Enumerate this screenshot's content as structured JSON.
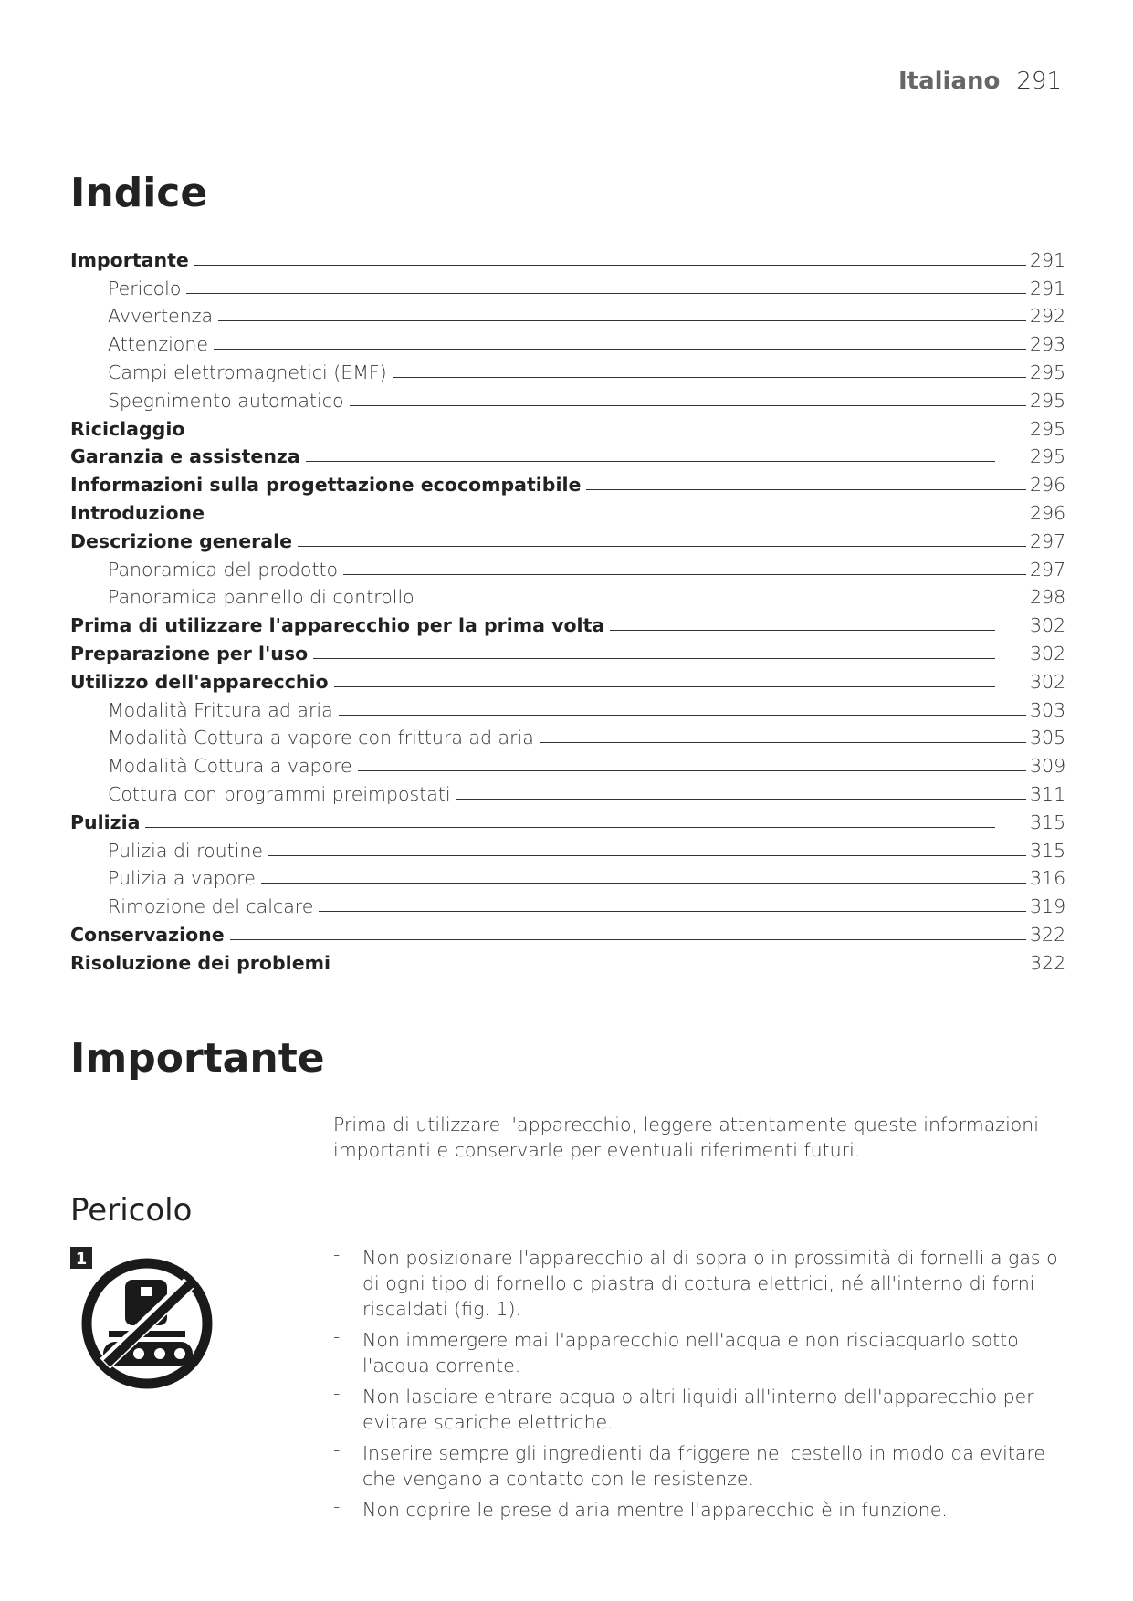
{
  "header": {
    "language": "Italiano",
    "page": "291"
  },
  "toc": {
    "title": "Indice",
    "entries": [
      {
        "label": "Importante",
        "page": "291",
        "level": 1,
        "far": false
      },
      {
        "label": "Pericolo",
        "page": "291",
        "level": 2,
        "far": false
      },
      {
        "label": "Avvertenza",
        "page": "292",
        "level": 2,
        "far": false
      },
      {
        "label": "Attenzione",
        "page": "293",
        "level": 2,
        "far": false
      },
      {
        "label": "Campi elettromagnetici (EMF)",
        "page": "295",
        "level": 2,
        "far": false
      },
      {
        "label": "Spegnimento automatico",
        "page": "295",
        "level": 2,
        "far": false
      },
      {
        "label": "Riciclaggio",
        "page": "295",
        "level": 1,
        "far": true
      },
      {
        "label": "Garanzia e assistenza",
        "page": "295",
        "level": 1,
        "far": true
      },
      {
        "label": "Informazioni sulla progettazione ecocompatibile",
        "page": "296",
        "level": 1,
        "far": false
      },
      {
        "label": "Introduzione",
        "page": "296",
        "level": 1,
        "far": false
      },
      {
        "label": "Descrizione generale",
        "page": "297",
        "level": 1,
        "far": false
      },
      {
        "label": "Panoramica del prodotto",
        "page": "297",
        "level": 2,
        "far": false
      },
      {
        "label": "Panoramica pannello di controllo",
        "page": "298",
        "level": 2,
        "far": false
      },
      {
        "label": "Prima di utilizzare l'apparecchio per la prima volta",
        "page": "302",
        "level": 1,
        "far": true
      },
      {
        "label": "Preparazione per l'uso",
        "page": "302",
        "level": 1,
        "far": true
      },
      {
        "label": "Utilizzo dell'apparecchio",
        "page": "302",
        "level": 1,
        "far": true
      },
      {
        "label": "Modalità Frittura ad aria",
        "page": "303",
        "level": 2,
        "far": false
      },
      {
        "label": "Modalità Cottura a vapore con frittura ad aria",
        "page": "305",
        "level": 2,
        "far": false
      },
      {
        "label": "Modalità Cottura a vapore",
        "page": "309",
        "level": 2,
        "far": false
      },
      {
        "label": "Cottura con programmi preimpostati",
        "page": "311",
        "level": 2,
        "far": false
      },
      {
        "label": "Pulizia",
        "page": "315",
        "level": 1,
        "far": true
      },
      {
        "label": "Pulizia di routine",
        "page": "315",
        "level": 2,
        "far": false
      },
      {
        "label": "Pulizia a vapore",
        "page": "316",
        "level": 2,
        "far": false
      },
      {
        "label": "Rimozione del calcare",
        "page": "319",
        "level": 2,
        "far": false
      },
      {
        "label": "Conservazione",
        "page": "322",
        "level": 1,
        "far": false
      },
      {
        "label": "Risoluzione dei problemi",
        "page": "322",
        "level": 1,
        "far": false
      }
    ]
  },
  "important": {
    "title": "Importante",
    "intro": "Prima di utilizzare l'apparecchio, leggere attentamente queste informazioni importanti e conservarle per eventuali riferimenti futuri."
  },
  "danger": {
    "title": "Pericolo",
    "figure_number": "1",
    "figure_icon": "no-appliance-on-stove-icon",
    "bullets": [
      "Non posizionare l'apparecchio al di sopra o in prossimità di fornelli a gas o di ogni tipo di fornello o piastra di cottura elettrici, né all'interno di forni riscaldati (fig. 1).",
      "Non immergere mai l'apparecchio nell'acqua e non risciacquarlo sotto l'acqua corrente.",
      "Non lasciare entrare acqua o altri liquidi all'interno dell'apparecchio per evitare scariche elettriche.",
      "Inserire sempre gli ingredienti da friggere nel cestello in modo da evitare che vengano a contatto con le resistenze.",
      "Non coprire le prese d'aria mentre l'apparecchio è in funzione."
    ]
  }
}
